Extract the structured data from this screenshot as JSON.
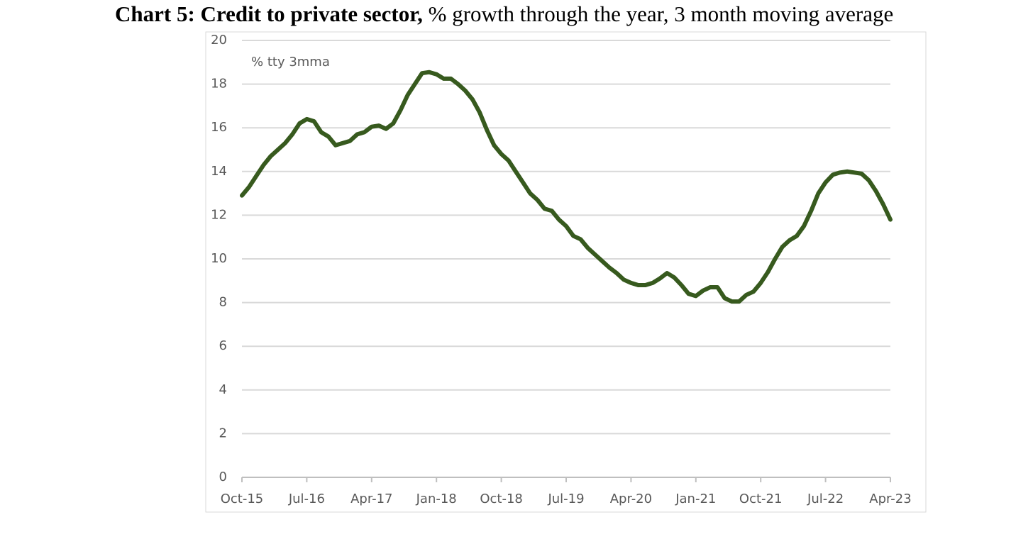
{
  "chart_data": {
    "type": "line",
    "title": "Chart 5: Credit to private sector,",
    "subtitle": "% growth through the year, 3 month moving average",
    "annotation": "% tty 3mma",
    "categories": [
      "Oct-15",
      null,
      null,
      null,
      null,
      null,
      null,
      null,
      null,
      "Jul-16",
      null,
      null,
      null,
      null,
      null,
      null,
      null,
      null,
      "Apr-17",
      null,
      null,
      null,
      null,
      null,
      null,
      null,
      null,
      "Jan-18",
      null,
      null,
      null,
      null,
      null,
      null,
      null,
      null,
      "Oct-18",
      null,
      null,
      null,
      null,
      null,
      null,
      null,
      null,
      "Jul-19",
      null,
      null,
      null,
      null,
      null,
      null,
      null,
      null,
      "Apr-20",
      null,
      null,
      null,
      null,
      null,
      null,
      null,
      null,
      "Jan-21",
      null,
      null,
      null,
      null,
      null,
      null,
      null,
      null,
      "Oct-21",
      null,
      null,
      null,
      null,
      null,
      null,
      null,
      null,
      "Jul-22",
      null,
      null,
      null,
      null,
      null,
      null,
      null,
      null,
      "Apr-23"
    ],
    "series": [
      {
        "name": "Credit to private sector",
        "color": "#375a1e",
        "values": [
          12.9,
          13.3,
          13.8,
          14.3,
          14.7,
          15.0,
          15.3,
          15.7,
          16.2,
          16.4,
          16.3,
          15.8,
          15.6,
          15.2,
          15.3,
          15.4,
          15.7,
          15.8,
          16.05,
          16.1,
          15.95,
          16.2,
          16.8,
          17.5,
          18.0,
          18.5,
          18.55,
          18.45,
          18.25,
          18.25,
          18.0,
          17.7,
          17.3,
          16.7,
          15.9,
          15.2,
          14.8,
          14.5,
          14.0,
          13.5,
          13.0,
          12.7,
          12.3,
          12.2,
          11.8,
          11.5,
          11.05,
          10.9,
          10.5,
          10.2,
          9.9,
          9.6,
          9.35,
          9.05,
          8.9,
          8.8,
          8.8,
          8.9,
          9.1,
          9.35,
          9.15,
          8.8,
          8.4,
          8.3,
          8.55,
          8.7,
          8.7,
          8.2,
          8.05,
          8.05,
          8.35,
          8.5,
          8.9,
          9.4,
          10.0,
          10.55,
          10.85,
          11.05,
          11.5,
          12.2,
          13.0,
          13.5,
          13.85,
          13.95,
          14.0,
          13.95,
          13.9,
          13.6,
          13.1,
          12.5,
          11.8
        ]
      }
    ],
    "ylim": [
      0,
      20
    ],
    "yticks": [
      0,
      2,
      4,
      6,
      8,
      10,
      12,
      14,
      16,
      18,
      20
    ],
    "grid": true
  }
}
